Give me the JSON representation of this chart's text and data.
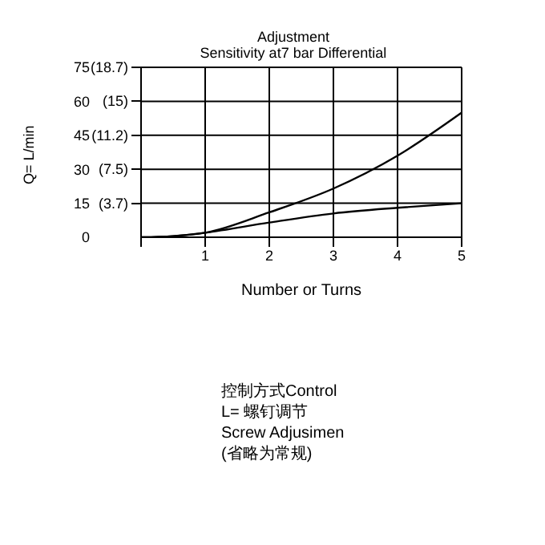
{
  "chart_data": {
    "type": "line",
    "title": "Adjustment",
    "subtitle": "Sensitivity at7 bar Differential",
    "xlabel": "Number or Turns",
    "ylabel": "Q= L/min",
    "x": [
      0,
      0.5,
      1,
      2,
      3,
      4,
      5
    ],
    "series": [
      {
        "color": "#000000",
        "values": [
          0,
          0.5,
          2,
          11,
          21.5,
          36,
          55
        ]
      },
      {
        "color": "#000000",
        "values": [
          0,
          0.5,
          2,
          6.5,
          10.5,
          13,
          15
        ]
      }
    ],
    "xlim": [
      0,
      5
    ],
    "xticks": [
      {
        "value": 0,
        "label": null
      },
      1,
      2,
      3,
      4,
      5
    ],
    "ylim": [
      0,
      75
    ],
    "yticks": [
      0,
      15,
      30,
      45,
      60,
      75
    ],
    "y2lim": [
      0,
      18.7
    ],
    "y2ticks": [
      {
        "value": 3.7,
        "label": "(3.7)"
      },
      {
        "value": 7.5,
        "label": "(7.5)"
      },
      {
        "value": 11.2,
        "label": "(11.2)"
      },
      {
        "value": 15,
        "label": "(15)"
      },
      {
        "value": 18.7,
        "label": "(18.7)"
      }
    ],
    "grid": true,
    "marker": "none",
    "line_style": "solid",
    "legend": false,
    "annotations": [
      "控制方式Control",
      "L=  螺钉调节",
      "Screw  Adjusimen",
      "(省略为常规)"
    ]
  }
}
